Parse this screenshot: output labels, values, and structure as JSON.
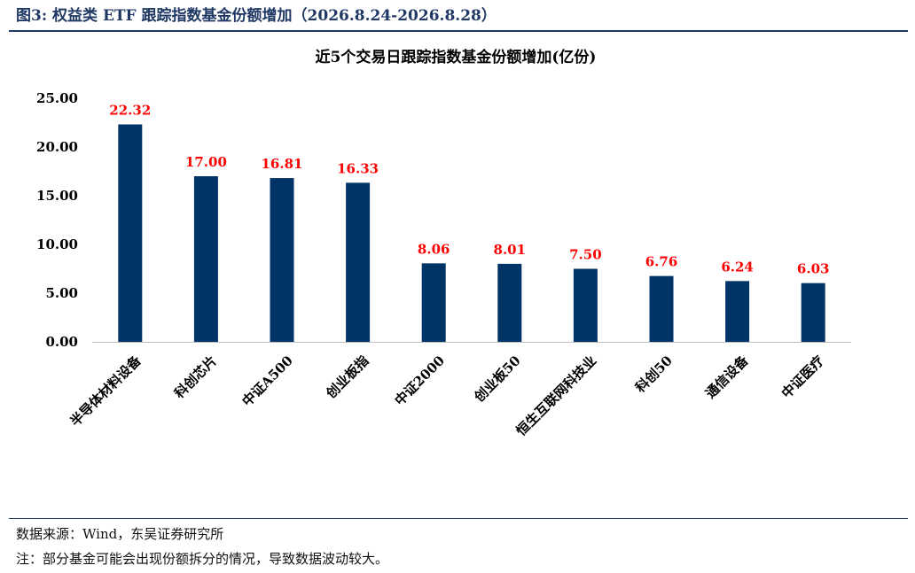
{
  "figure": {
    "title": "图3:  权益类 ETF 跟踪指数基金份额增加（2026.8.24-2026.8.28）",
    "source": "数据来源：Wind，东吴证券研究所",
    "note": "注：部分基金可能会出现份额拆分的情况，导致数据波动较大。"
  },
  "colors": {
    "bar": "#003366",
    "data_label": "#ff0000",
    "accent": "#1f3864",
    "axis": "#bfbfbf"
  },
  "chart_data": {
    "type": "bar",
    "title": "近5个交易日跟踪指数基金份额增加(亿份)",
    "categories": [
      "半导体材料设备",
      "科创芯片",
      "中证A500",
      "创业板指",
      "中证2000",
      "创业板50",
      "恒生互联网科技业",
      "科创50",
      "通信设备",
      "中证医疗"
    ],
    "values": [
      22.32,
      17.0,
      16.81,
      16.33,
      8.06,
      8.01,
      7.5,
      6.76,
      6.24,
      6.03
    ],
    "data_labels": [
      "22.32",
      "17.00",
      "16.81",
      "16.33",
      "8.06",
      "8.01",
      "7.50",
      "6.76",
      "6.24",
      "6.03"
    ],
    "yticks": [
      0,
      5,
      10,
      15,
      20,
      25
    ],
    "ytick_labels": [
      "0.00",
      "5.00",
      "10.00",
      "15.00",
      "20.00",
      "25.00"
    ],
    "ylim": [
      0,
      25
    ],
    "xlabel": "",
    "ylabel": "",
    "grid": false,
    "legend": "none"
  }
}
